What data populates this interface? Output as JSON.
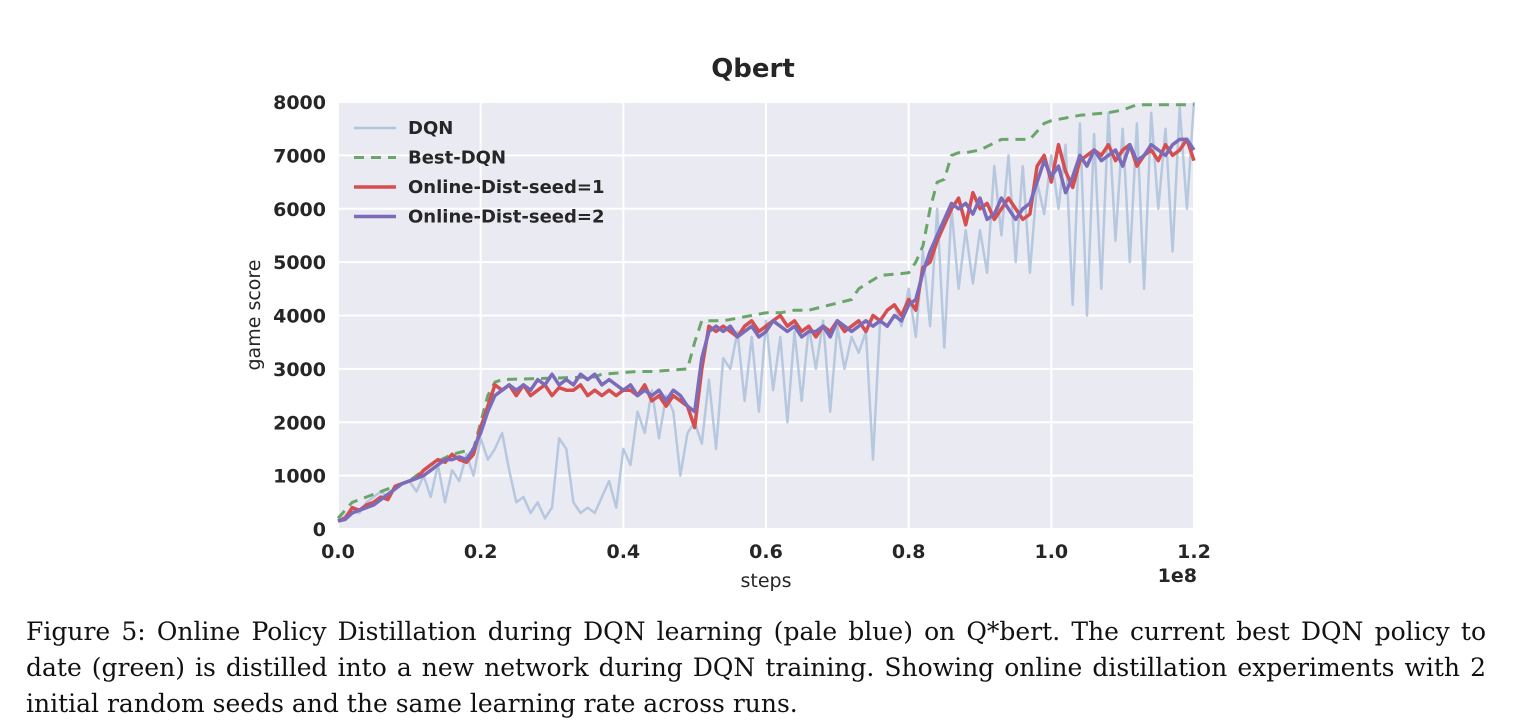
{
  "chart_data": {
    "type": "line",
    "title": "Qbert",
    "xlabel": "steps",
    "ylabel": "game score",
    "x_multiplier_label": "1e8",
    "xlim": [
      0,
      1.2
    ],
    "ylim": [
      0,
      8000
    ],
    "x_ticks": [
      0.0,
      0.2,
      0.4,
      0.6,
      0.8,
      1.0,
      1.2
    ],
    "x_tick_labels": [
      "0.0",
      "0.2",
      "0.4",
      "0.6",
      "0.8",
      "1.0",
      "1.2"
    ],
    "y_ticks": [
      0,
      1000,
      2000,
      3000,
      4000,
      5000,
      6000,
      7000,
      8000
    ],
    "y_tick_labels": [
      "0",
      "1000",
      "2000",
      "3000",
      "4000",
      "5000",
      "6000",
      "7000",
      "8000"
    ],
    "grid": true,
    "legend_position": "top-left",
    "series": [
      {
        "name": "DQN",
        "color": "#b0c4de",
        "style": "solid",
        "x": [
          0.0,
          0.01,
          0.02,
          0.03,
          0.04,
          0.05,
          0.06,
          0.07,
          0.08,
          0.09,
          0.1,
          0.11,
          0.12,
          0.13,
          0.14,
          0.15,
          0.16,
          0.17,
          0.18,
          0.19,
          0.2,
          0.21,
          0.22,
          0.23,
          0.24,
          0.25,
          0.26,
          0.27,
          0.28,
          0.29,
          0.3,
          0.31,
          0.32,
          0.33,
          0.34,
          0.35,
          0.36,
          0.37,
          0.38,
          0.39,
          0.4,
          0.41,
          0.42,
          0.43,
          0.44,
          0.45,
          0.46,
          0.47,
          0.48,
          0.49,
          0.5,
          0.51,
          0.52,
          0.53,
          0.54,
          0.55,
          0.56,
          0.57,
          0.58,
          0.59,
          0.6,
          0.61,
          0.62,
          0.63,
          0.64,
          0.65,
          0.66,
          0.67,
          0.68,
          0.69,
          0.7,
          0.71,
          0.72,
          0.73,
          0.74,
          0.75,
          0.76,
          0.77,
          0.78,
          0.79,
          0.8,
          0.81,
          0.82,
          0.83,
          0.84,
          0.85,
          0.86,
          0.87,
          0.88,
          0.89,
          0.9,
          0.91,
          0.92,
          0.93,
          0.94,
          0.95,
          0.96,
          0.97,
          0.98,
          0.99,
          1.0,
          1.01,
          1.02,
          1.03,
          1.04,
          1.05,
          1.06,
          1.07,
          1.08,
          1.09,
          1.1,
          1.11,
          1.12,
          1.13,
          1.14,
          1.15,
          1.16,
          1.17,
          1.18,
          1.19,
          1.2
        ],
        "values": [
          150,
          250,
          350,
          300,
          500,
          600,
          700,
          600,
          800,
          850,
          900,
          700,
          1000,
          600,
          1200,
          500,
          1100,
          900,
          1400,
          1000,
          1700,
          1300,
          1500,
          1800,
          1100,
          500,
          600,
          300,
          500,
          200,
          400,
          1700,
          1500,
          500,
          300,
          400,
          300,
          600,
          900,
          400,
          1500,
          1200,
          2200,
          1800,
          2600,
          1700,
          2500,
          2200,
          1000,
          1800,
          2000,
          1600,
          2800,
          1500,
          3200,
          3000,
          3700,
          2400,
          3600,
          2200,
          3900,
          2600,
          3600,
          2000,
          3700,
          2400,
          3800,
          3000,
          3900,
          2200,
          3800,
          3000,
          3600,
          3300,
          3700,
          1300,
          3900,
          4100,
          4200,
          3800,
          4500,
          3600,
          5200,
          3800,
          6000,
          3400,
          6000,
          4500,
          5600,
          4600,
          5600,
          4800,
          6800,
          5500,
          7000,
          5000,
          6800,
          4800,
          6500,
          5900,
          7000,
          6000,
          7200,
          4200,
          7600,
          4000,
          7400,
          4500,
          7800,
          5400,
          7500,
          5000,
          7600,
          4500,
          7800,
          6000,
          7500,
          5200,
          7900,
          6000,
          8000
        ]
      },
      {
        "name": "Best-DQN",
        "color": "#6aa56a",
        "style": "dashed",
        "x": [
          0.0,
          0.02,
          0.04,
          0.06,
          0.08,
          0.1,
          0.11,
          0.13,
          0.16,
          0.19,
          0.2,
          0.21,
          0.22,
          0.23,
          0.36,
          0.37,
          0.42,
          0.44,
          0.49,
          0.5,
          0.51,
          0.52,
          0.54,
          0.58,
          0.6,
          0.62,
          0.64,
          0.66,
          0.72,
          0.73,
          0.76,
          0.8,
          0.81,
          0.82,
          0.83,
          0.84,
          0.85,
          0.86,
          0.87,
          0.88,
          0.9,
          0.93,
          0.97,
          0.99,
          1.0,
          1.02,
          1.04,
          1.08,
          1.1,
          1.12,
          1.18,
          1.19,
          1.2
        ],
        "values": [
          200,
          500,
          600,
          700,
          800,
          900,
          1000,
          1200,
          1400,
          1500,
          2000,
          2500,
          2750,
          2800,
          2850,
          2900,
          2950,
          2950,
          3000,
          3500,
          3900,
          3900,
          3900,
          4000,
          4050,
          4050,
          4100,
          4100,
          4300,
          4500,
          4750,
          4800,
          5000,
          5300,
          6000,
          6500,
          6550,
          7000,
          7050,
          7050,
          7100,
          7300,
          7300,
          7600,
          7650,
          7700,
          7750,
          7800,
          7850,
          7950,
          7950,
          7950,
          7950
        ]
      },
      {
        "name": "Online-Dist-seed=1",
        "color": "#d64e4e",
        "style": "solid",
        "x": [
          0.0,
          0.01,
          0.02,
          0.03,
          0.04,
          0.05,
          0.06,
          0.07,
          0.08,
          0.09,
          0.1,
          0.11,
          0.12,
          0.13,
          0.14,
          0.15,
          0.16,
          0.17,
          0.18,
          0.19,
          0.2,
          0.21,
          0.22,
          0.23,
          0.24,
          0.25,
          0.26,
          0.27,
          0.28,
          0.29,
          0.3,
          0.31,
          0.32,
          0.33,
          0.34,
          0.35,
          0.36,
          0.37,
          0.38,
          0.39,
          0.4,
          0.41,
          0.42,
          0.43,
          0.44,
          0.45,
          0.46,
          0.47,
          0.48,
          0.49,
          0.5,
          0.51,
          0.52,
          0.53,
          0.54,
          0.55,
          0.56,
          0.57,
          0.58,
          0.59,
          0.6,
          0.61,
          0.62,
          0.63,
          0.64,
          0.65,
          0.66,
          0.67,
          0.68,
          0.69,
          0.7,
          0.71,
          0.72,
          0.73,
          0.74,
          0.75,
          0.76,
          0.77,
          0.78,
          0.79,
          0.8,
          0.81,
          0.82,
          0.83,
          0.84,
          0.85,
          0.86,
          0.87,
          0.88,
          0.89,
          0.9,
          0.91,
          0.92,
          0.93,
          0.94,
          0.95,
          0.96,
          0.97,
          0.98,
          0.99,
          1.0,
          1.01,
          1.02,
          1.03,
          1.04,
          1.05,
          1.06,
          1.07,
          1.08,
          1.09,
          1.1,
          1.11,
          1.12,
          1.13,
          1.14,
          1.15,
          1.16,
          1.17,
          1.18,
          1.19,
          1.2
        ],
        "values": [
          150,
          200,
          400,
          350,
          450,
          500,
          600,
          550,
          800,
          850,
          900,
          950,
          1100,
          1200,
          1300,
          1250,
          1400,
          1300,
          1250,
          1400,
          1900,
          2300,
          2700,
          2600,
          2700,
          2500,
          2700,
          2500,
          2600,
          2700,
          2500,
          2650,
          2600,
          2600,
          2700,
          2500,
          2600,
          2500,
          2600,
          2500,
          2600,
          2600,
          2500,
          2700,
          2400,
          2500,
          2300,
          2500,
          2400,
          2300,
          1900,
          3000,
          3800,
          3700,
          3800,
          3700,
          3600,
          3800,
          3900,
          3700,
          3800,
          3900,
          4000,
          3800,
          3900,
          3700,
          3800,
          3600,
          3800,
          3700,
          3900,
          3700,
          3800,
          3900,
          3700,
          4000,
          3900,
          4100,
          4200,
          4000,
          4300,
          4100,
          4900,
          5000,
          5400,
          5700,
          6000,
          6200,
          5700,
          6300,
          6000,
          6100,
          5800,
          6000,
          6200,
          6000,
          5800,
          5900,
          6800,
          7000,
          6500,
          7200,
          6700,
          6400,
          6900,
          7000,
          7100,
          7000,
          7200,
          6900,
          7100,
          7200,
          6800,
          7000,
          7100,
          6900,
          7200,
          7000,
          7100,
          7300,
          6900
        ]
      },
      {
        "name": "Online-Dist-seed=2",
        "color": "#7b6bb8",
        "style": "solid",
        "x": [
          0.0,
          0.01,
          0.02,
          0.03,
          0.04,
          0.05,
          0.06,
          0.07,
          0.08,
          0.09,
          0.1,
          0.11,
          0.12,
          0.13,
          0.14,
          0.15,
          0.16,
          0.17,
          0.18,
          0.19,
          0.2,
          0.21,
          0.22,
          0.23,
          0.24,
          0.25,
          0.26,
          0.27,
          0.28,
          0.29,
          0.3,
          0.31,
          0.32,
          0.33,
          0.34,
          0.35,
          0.36,
          0.37,
          0.38,
          0.39,
          0.4,
          0.41,
          0.42,
          0.43,
          0.44,
          0.45,
          0.46,
          0.47,
          0.48,
          0.49,
          0.5,
          0.51,
          0.52,
          0.53,
          0.54,
          0.55,
          0.56,
          0.57,
          0.58,
          0.59,
          0.6,
          0.61,
          0.62,
          0.63,
          0.64,
          0.65,
          0.66,
          0.67,
          0.68,
          0.69,
          0.7,
          0.71,
          0.72,
          0.73,
          0.74,
          0.75,
          0.76,
          0.77,
          0.78,
          0.79,
          0.8,
          0.81,
          0.82,
          0.83,
          0.84,
          0.85,
          0.86,
          0.87,
          0.88,
          0.89,
          0.9,
          0.91,
          0.92,
          0.93,
          0.94,
          0.95,
          0.96,
          0.97,
          0.98,
          0.99,
          1.0,
          1.01,
          1.02,
          1.03,
          1.04,
          1.05,
          1.06,
          1.07,
          1.08,
          1.09,
          1.1,
          1.11,
          1.12,
          1.13,
          1.14,
          1.15,
          1.16,
          1.17,
          1.18,
          1.19,
          1.2
        ],
        "values": [
          150,
          180,
          300,
          350,
          400,
          450,
          550,
          650,
          750,
          850,
          900,
          950,
          1000,
          1100,
          1200,
          1300,
          1300,
          1350,
          1300,
          1500,
          1800,
          2200,
          2500,
          2600,
          2700,
          2600,
          2700,
          2600,
          2800,
          2700,
          2900,
          2700,
          2800,
          2700,
          2900,
          2800,
          2900,
          2700,
          2800,
          2700,
          2600,
          2700,
          2500,
          2600,
          2500,
          2600,
          2400,
          2600,
          2500,
          2300,
          2200,
          3200,
          3700,
          3800,
          3700,
          3800,
          3600,
          3700,
          3800,
          3600,
          3700,
          3900,
          3800,
          3700,
          3800,
          3600,
          3700,
          3700,
          3800,
          3600,
          3900,
          3800,
          3700,
          3800,
          3900,
          3800,
          3900,
          3800,
          4000,
          3900,
          4200,
          4300,
          4800,
          5200,
          5500,
          5800,
          6100,
          6000,
          6100,
          5900,
          6200,
          5800,
          5900,
          6200,
          6000,
          5800,
          6000,
          6100,
          6500,
          6900,
          6600,
          6800,
          6300,
          6600,
          7000,
          6800,
          7100,
          6900,
          7000,
          7100,
          6800,
          7200,
          6900,
          7000,
          7200,
          7100,
          7000,
          7200,
          7300,
          7300,
          7100
        ]
      }
    ]
  },
  "caption": "Figure 5: Online Policy Distillation during DQN learning (pale blue) on Q*bert. The current best DQN policy to date (green) is distilled into a new network during DQN training. Showing online distillation experiments with 2 initial random seeds and the same learning rate across runs."
}
